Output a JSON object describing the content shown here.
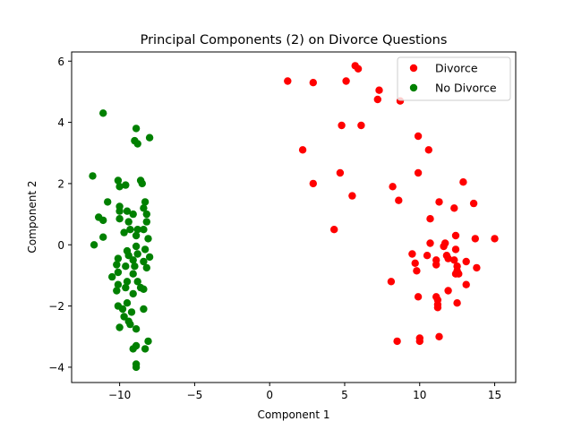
{
  "chart_data": {
    "type": "scatter",
    "title": "Principal Components (2) on Divorce Questions",
    "xlabel": "Component 1",
    "ylabel": "Component 2",
    "xlim": [
      -13.2,
      16.4
    ],
    "ylim": [
      -4.5,
      6.3
    ],
    "xticks": [
      -10,
      -5,
      0,
      5,
      10,
      15
    ],
    "yticks": [
      -4,
      -2,
      0,
      2,
      4,
      6
    ],
    "xtick_labels": [
      "−10",
      "−5",
      "0",
      "5",
      "10",
      "15"
    ],
    "ytick_labels": [
      "−4",
      "−2",
      "0",
      "2",
      "4",
      "6"
    ],
    "grid": false,
    "legend": "top-right",
    "series": [
      {
        "name": "Divorce",
        "color": "#ff0000",
        "points": [
          [
            5.7,
            5.85
          ],
          [
            5.9,
            5.75
          ],
          [
            1.2,
            5.35
          ],
          [
            2.9,
            5.3
          ],
          [
            5.1,
            5.35
          ],
          [
            7.3,
            5.05
          ],
          [
            7.2,
            4.75
          ],
          [
            8.7,
            4.7
          ],
          [
            4.8,
            3.9
          ],
          [
            6.1,
            3.9
          ],
          [
            9.9,
            3.55
          ],
          [
            10.6,
            3.1
          ],
          [
            2.2,
            3.1
          ],
          [
            9.9,
            2.35
          ],
          [
            4.7,
            2.35
          ],
          [
            12.9,
            2.05
          ],
          [
            2.9,
            2.0
          ],
          [
            8.2,
            1.9
          ],
          [
            5.5,
            1.6
          ],
          [
            8.6,
            1.45
          ],
          [
            11.3,
            1.4
          ],
          [
            13.6,
            1.35
          ],
          [
            12.3,
            1.2
          ],
          [
            10.7,
            0.85
          ],
          [
            4.3,
            0.5
          ],
          [
            13.7,
            0.2
          ],
          [
            15.0,
            0.2
          ],
          [
            12.4,
            0.3
          ],
          [
            11.7,
            0.05
          ],
          [
            10.7,
            0.05
          ],
          [
            11.6,
            -0.05
          ],
          [
            12.4,
            -0.15
          ],
          [
            9.5,
            -0.3
          ],
          [
            11.8,
            -0.35
          ],
          [
            10.5,
            -0.35
          ],
          [
            11.1,
            -0.5
          ],
          [
            12.3,
            -0.5
          ],
          [
            11.9,
            -0.45
          ],
          [
            13.1,
            -0.55
          ],
          [
            9.7,
            -0.6
          ],
          [
            11.1,
            -0.65
          ],
          [
            12.5,
            -0.7
          ],
          [
            13.8,
            -0.75
          ],
          [
            9.8,
            -0.85
          ],
          [
            12.5,
            -0.85
          ],
          [
            12.4,
            -0.95
          ],
          [
            12.6,
            -0.95
          ],
          [
            8.1,
            -1.2
          ],
          [
            13.1,
            -1.3
          ],
          [
            11.9,
            -1.5
          ],
          [
            9.9,
            -1.7
          ],
          [
            11.1,
            -1.7
          ],
          [
            11.2,
            -1.8
          ],
          [
            12.5,
            -1.9
          ],
          [
            11.2,
            -1.95
          ],
          [
            11.2,
            -2.05
          ],
          [
            11.3,
            -3.0
          ],
          [
            10.0,
            -3.05
          ],
          [
            8.5,
            -3.15
          ],
          [
            10.0,
            -3.15
          ]
        ]
      },
      {
        "name": "No Divorce",
        "color": "#008000",
        "points": [
          [
            -11.1,
            4.3
          ],
          [
            -8.9,
            3.8
          ],
          [
            -9.0,
            3.4
          ],
          [
            -8.8,
            3.3
          ],
          [
            -8.0,
            3.5
          ],
          [
            -11.8,
            2.25
          ],
          [
            -10.1,
            2.1
          ],
          [
            -8.6,
            2.1
          ],
          [
            -8.5,
            2.0
          ],
          [
            -9.6,
            1.95
          ],
          [
            -10.0,
            1.9
          ],
          [
            -10.8,
            1.4
          ],
          [
            -8.3,
            1.4
          ],
          [
            -10.0,
            1.25
          ],
          [
            -8.4,
            1.2
          ],
          [
            -10.0,
            1.1
          ],
          [
            -9.5,
            1.1
          ],
          [
            -9.1,
            1.0
          ],
          [
            -8.2,
            1.0
          ],
          [
            -11.4,
            0.9
          ],
          [
            -11.1,
            0.8
          ],
          [
            -10.0,
            0.85
          ],
          [
            -9.4,
            0.75
          ],
          [
            -8.2,
            0.75
          ],
          [
            -9.3,
            0.5
          ],
          [
            -8.8,
            0.5
          ],
          [
            -8.4,
            0.5
          ],
          [
            -9.7,
            0.4
          ],
          [
            -11.1,
            0.25
          ],
          [
            -8.9,
            0.3
          ],
          [
            -8.1,
            0.2
          ],
          [
            -11.7,
            0.0
          ],
          [
            -8.9,
            -0.05
          ],
          [
            -9.5,
            -0.2
          ],
          [
            -8.3,
            -0.15
          ],
          [
            -8.8,
            -0.3
          ],
          [
            -9.4,
            -0.35
          ],
          [
            -8.0,
            -0.4
          ],
          [
            -10.1,
            -0.45
          ],
          [
            -9.1,
            -0.5
          ],
          [
            -8.4,
            -0.55
          ],
          [
            -10.2,
            -0.65
          ],
          [
            -9.6,
            -0.7
          ],
          [
            -9.0,
            -0.7
          ],
          [
            -8.2,
            -0.75
          ],
          [
            -10.1,
            -0.9
          ],
          [
            -9.1,
            -0.95
          ],
          [
            -10.5,
            -1.05
          ],
          [
            -9.5,
            -1.2
          ],
          [
            -8.8,
            -1.2
          ],
          [
            -10.1,
            -1.3
          ],
          [
            -9.6,
            -1.4
          ],
          [
            -8.6,
            -1.4
          ],
          [
            -8.4,
            -1.45
          ],
          [
            -10.2,
            -1.5
          ],
          [
            -9.1,
            -1.6
          ],
          [
            -9.5,
            -1.9
          ],
          [
            -10.1,
            -2.0
          ],
          [
            -9.8,
            -2.1
          ],
          [
            -8.4,
            -2.1
          ],
          [
            -9.2,
            -2.2
          ],
          [
            -9.7,
            -2.35
          ],
          [
            -9.4,
            -2.5
          ],
          [
            -9.3,
            -2.6
          ],
          [
            -10.0,
            -2.7
          ],
          [
            -8.9,
            -2.75
          ],
          [
            -8.1,
            -3.15
          ],
          [
            -8.9,
            -3.3
          ],
          [
            -9.1,
            -3.4
          ],
          [
            -8.3,
            -3.4
          ],
          [
            -8.9,
            -3.9
          ],
          [
            -8.9,
            -4.0
          ]
        ]
      }
    ]
  },
  "outliers_note_excluded": null
}
